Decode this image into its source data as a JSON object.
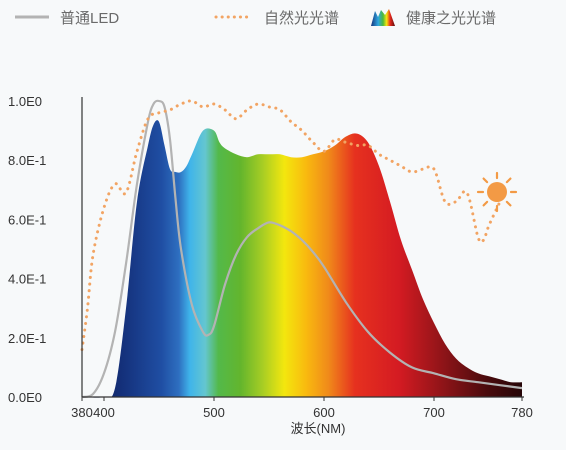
{
  "legend": {
    "led_label": "普通LED",
    "natural_label": "自然光光谱",
    "healthy_label": "健康之光光谱"
  },
  "colors": {
    "led": "#b3b3b3",
    "natural": "#f2a463",
    "sun": "#f39a45",
    "axis": "#333333"
  },
  "icons": {
    "healthy": "spectrum-swatch-icon",
    "sun": "sun-icon"
  },
  "chart_data": {
    "type": "line",
    "xlabel": "波长(NM)",
    "ylabel": "",
    "xlim": [
      380,
      780
    ],
    "ylim": [
      0,
      1.0
    ],
    "x_ticks": [
      380,
      400,
      500,
      600,
      700,
      780
    ],
    "x_tick_labels": [
      "380",
      "400",
      "500",
      "600",
      "700",
      "780"
    ],
    "y_ticks": [
      0,
      0.2,
      0.4,
      0.6,
      0.8,
      1.0
    ],
    "y_tick_labels": [
      "0.0E0",
      "2.0E-1",
      "4.0E-1",
      "6.0E-1",
      "8.0E-1",
      "1.0E0"
    ],
    "grid": false,
    "legend_position": "top",
    "series": [
      {
        "name": "普通LED",
        "style": "solid-line",
        "x": [
          380,
          390,
          400,
          410,
          420,
          430,
          440,
          445,
          450,
          455,
          460,
          465,
          470,
          480,
          490,
          495,
          500,
          510,
          520,
          530,
          540,
          550,
          560,
          570,
          580,
          590,
          600,
          620,
          640,
          660,
          680,
          700,
          720,
          740,
          760,
          780
        ],
        "y": [
          0.0,
          0.01,
          0.08,
          0.22,
          0.45,
          0.72,
          0.93,
          0.99,
          1.0,
          0.98,
          0.87,
          0.67,
          0.5,
          0.31,
          0.22,
          0.21,
          0.24,
          0.38,
          0.48,
          0.54,
          0.57,
          0.59,
          0.58,
          0.56,
          0.53,
          0.49,
          0.44,
          0.32,
          0.22,
          0.15,
          0.1,
          0.08,
          0.06,
          0.05,
          0.04,
          0.03
        ]
      },
      {
        "name": "自然光光谱",
        "style": "dotted-line",
        "x": [
          380,
          385,
          390,
          400,
          410,
          420,
          430,
          440,
          450,
          460,
          470,
          480,
          490,
          500,
          510,
          520,
          530,
          540,
          550,
          560,
          570,
          580,
          590,
          600,
          610,
          620,
          630,
          640,
          650,
          660,
          670,
          680,
          690,
          700,
          710,
          720,
          730,
          740,
          745,
          750,
          760
        ],
        "y": [
          0.16,
          0.3,
          0.48,
          0.64,
          0.72,
          0.69,
          0.83,
          0.94,
          0.96,
          0.97,
          0.99,
          1.0,
          0.98,
          0.99,
          0.97,
          0.94,
          0.97,
          0.99,
          0.98,
          0.97,
          0.93,
          0.9,
          0.86,
          0.83,
          0.87,
          0.86,
          0.85,
          0.85,
          0.82,
          0.8,
          0.78,
          0.76,
          0.77,
          0.77,
          0.66,
          0.66,
          0.69,
          0.54,
          0.53,
          0.58,
          0.66
        ]
      },
      {
        "name": "健康之光光谱",
        "style": "rainbow-filled-area",
        "x": [
          380,
          400,
          410,
          420,
          430,
          440,
          445,
          450,
          455,
          460,
          465,
          470,
          475,
          480,
          490,
          500,
          505,
          510,
          520,
          530,
          540,
          550,
          560,
          570,
          580,
          590,
          600,
          610,
          620,
          630,
          640,
          650,
          660,
          670,
          680,
          690,
          700,
          710,
          720,
          730,
          740,
          750,
          760,
          770,
          780
        ],
        "y": [
          0.0,
          0.0,
          0.03,
          0.3,
          0.66,
          0.85,
          0.92,
          0.93,
          0.85,
          0.77,
          0.76,
          0.76,
          0.78,
          0.82,
          0.9,
          0.9,
          0.86,
          0.84,
          0.82,
          0.81,
          0.82,
          0.82,
          0.82,
          0.81,
          0.81,
          0.82,
          0.83,
          0.85,
          0.88,
          0.89,
          0.86,
          0.78,
          0.66,
          0.53,
          0.43,
          0.33,
          0.25,
          0.18,
          0.13,
          0.1,
          0.08,
          0.07,
          0.06,
          0.05,
          0.05
        ]
      }
    ]
  }
}
